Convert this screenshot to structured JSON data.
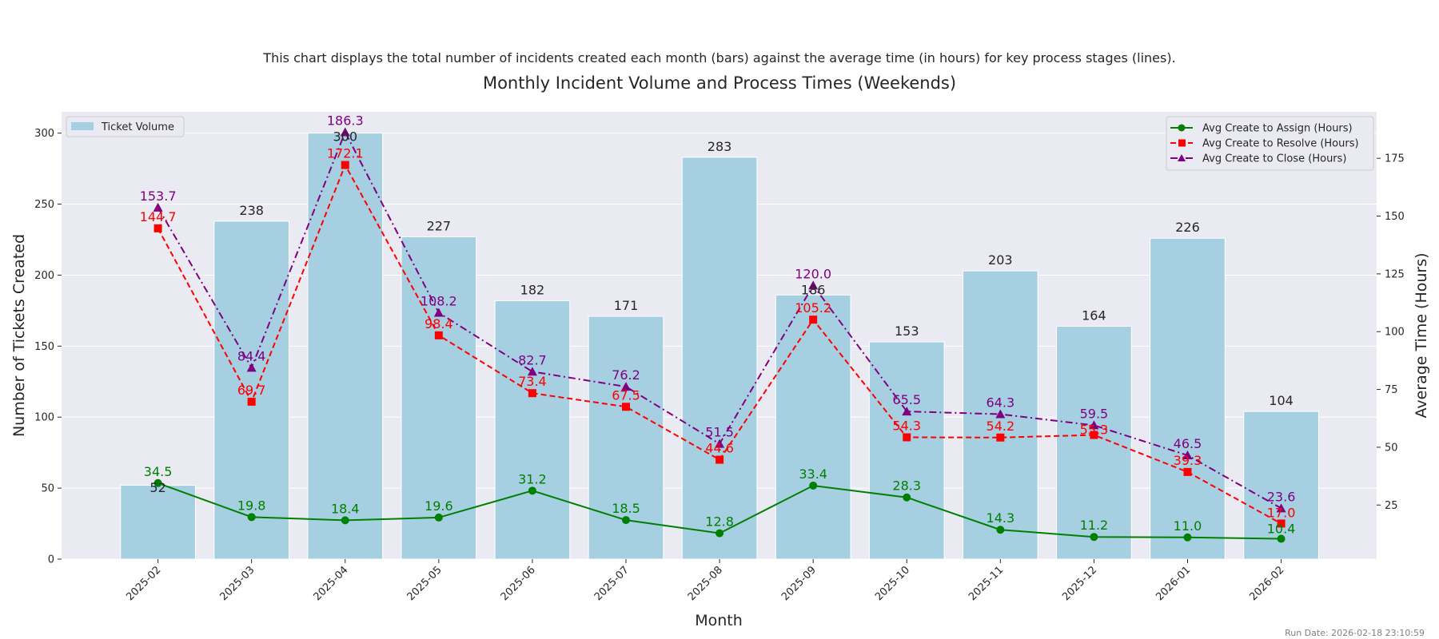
{
  "chart_data": {
    "type": "bar+line",
    "subtitle": "This chart displays the total number of incidents created each month (bars) against the average time (in hours) for key process stages (lines).",
    "title": "Monthly Incident Volume and Process Times (Weekends)",
    "xlabel": "Month",
    "ylabel": "Number of Tickets Created",
    "y2label": "Average Time (Hours)",
    "categories": [
      "2025-02",
      "2025-03",
      "2025-04",
      "2025-05",
      "2025-06",
      "2025-07",
      "2025-08",
      "2025-09",
      "2025-10",
      "2025-11",
      "2025-12",
      "2026-01",
      "2026-02"
    ],
    "ylim": [
      0,
      315
    ],
    "y2lim": [
      1.6,
      195.1
    ],
    "yticks": [
      0,
      50,
      100,
      150,
      200,
      250,
      300
    ],
    "y2ticks": [
      25,
      50,
      75,
      100,
      125,
      150,
      175
    ],
    "grid": true,
    "bars": {
      "name": "Ticket Volume",
      "color": "#a6cfe2",
      "values": [
        52,
        238,
        300,
        227,
        182,
        171,
        283,
        186,
        153,
        203,
        164,
        226,
        104
      ],
      "legend": "top-left"
    },
    "series": [
      {
        "name": "Avg Create to Assign (Hours)",
        "color": "#008000",
        "marker": "circle",
        "dash": "solid",
        "values": [
          34.5,
          19.8,
          18.4,
          19.6,
          31.2,
          18.5,
          12.8,
          33.4,
          28.3,
          14.3,
          11.2,
          11.0,
          10.4
        ]
      },
      {
        "name": "Avg Create to Resolve (Hours)",
        "color": "#ff0000",
        "marker": "square",
        "dash": "dashed",
        "values": [
          144.7,
          69.7,
          172.1,
          98.4,
          73.4,
          67.5,
          44.6,
          105.2,
          54.3,
          54.2,
          55.3,
          39.3,
          17.0
        ]
      },
      {
        "name": "Avg Create to Close (Hours)",
        "color": "#800080",
        "marker": "triangle",
        "dash": "dashdot",
        "values": [
          153.7,
          84.4,
          186.3,
          108.2,
          82.7,
          76.2,
          51.5,
          120.0,
          65.5,
          64.3,
          59.5,
          46.5,
          23.6
        ]
      }
    ],
    "lines_legend": "top-right"
  },
  "footer": {
    "run_date": "Run Date: 2026-02-18 23:10:59"
  }
}
